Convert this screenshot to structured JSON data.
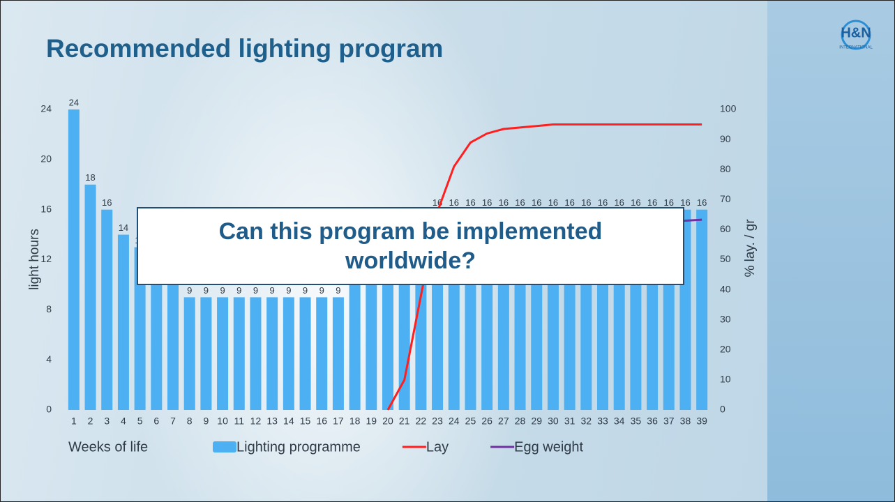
{
  "title": "Recommended lighting program",
  "logo": {
    "mark": "H&N",
    "text": "INTERNATIONAL"
  },
  "callout": "Can this program be implemented worldwide?",
  "chart_data": {
    "type": "bar",
    "x_label": "Weeks of life",
    "y_label": "light hours",
    "y2_label": "% lay. / gr",
    "categories": [
      1,
      2,
      3,
      4,
      5,
      6,
      7,
      8,
      9,
      10,
      11,
      12,
      13,
      14,
      15,
      16,
      17,
      18,
      19,
      20,
      21,
      22,
      23,
      24,
      25,
      26,
      27,
      28,
      29,
      30,
      31,
      32,
      33,
      34,
      35,
      36,
      37,
      38,
      39
    ],
    "ylim": [
      0,
      24
    ],
    "yticks": [
      0,
      4,
      8,
      12,
      16,
      20,
      24
    ],
    "y2lim": [
      0,
      100
    ],
    "y2ticks": [
      0,
      10,
      20,
      30,
      40,
      50,
      60,
      70,
      80,
      90,
      100
    ],
    "legend": "bottom",
    "series": [
      {
        "name": "Lighting programme",
        "type": "bar",
        "color": "#4cb0f2",
        "values": [
          24,
          18,
          16,
          14,
          13,
          12,
          10,
          9,
          9,
          9,
          9,
          9,
          9,
          9,
          9,
          9,
          9,
          10,
          11,
          12,
          14,
          15,
          16,
          16,
          16,
          16,
          16,
          16,
          16,
          16,
          16,
          16,
          16,
          16,
          16,
          16,
          16,
          16,
          16
        ]
      },
      {
        "name": "Lay",
        "type": "line",
        "axis": "y2",
        "color": "#ff1f1f",
        "values": [
          null,
          null,
          null,
          null,
          null,
          null,
          null,
          null,
          null,
          null,
          null,
          null,
          null,
          null,
          null,
          null,
          null,
          null,
          null,
          0,
          10,
          38,
          66,
          81,
          89,
          92,
          93.5,
          94,
          94.5,
          95,
          95,
          95,
          95,
          95,
          95,
          95,
          95,
          95,
          95
        ]
      },
      {
        "name": "Egg weight",
        "type": "line",
        "axis": "y2",
        "color": "#7030a0",
        "values": [
          null,
          null,
          null,
          null,
          null,
          null,
          null,
          null,
          null,
          null,
          null,
          null,
          null,
          null,
          null,
          null,
          null,
          null,
          null,
          null,
          null,
          null,
          null,
          null,
          null,
          null,
          null,
          null,
          null,
          null,
          null,
          null,
          null,
          null,
          null,
          null,
          62.5,
          63,
          63.3
        ]
      }
    ]
  }
}
